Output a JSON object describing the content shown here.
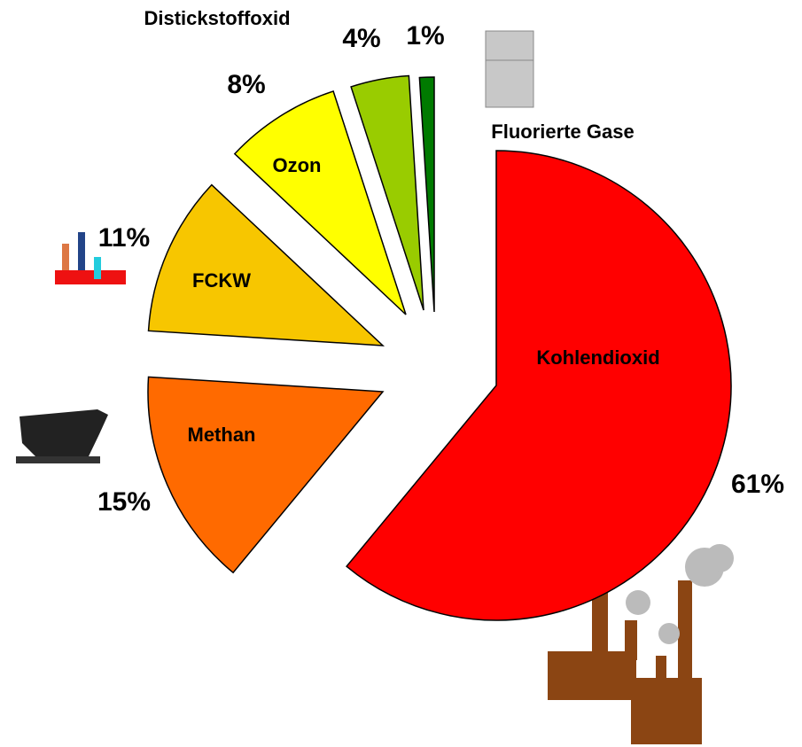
{
  "chart_data": {
    "type": "pie",
    "categories": [
      "Kohlendioxid",
      "Methan",
      "FCKW",
      "Ozon",
      "Distickstoffoxid",
      "Fluorierte Gase"
    ],
    "values": [
      61,
      15,
      11,
      8,
      4,
      1
    ],
    "value_labels": [
      "61%",
      "15%",
      "11%",
      "8%",
      "4%",
      "1%"
    ],
    "colors": [
      "#ff0000",
      "#ff6a00",
      "#f7c600",
      "#ffff00",
      "#99cc00",
      "#007a00"
    ]
  }
}
